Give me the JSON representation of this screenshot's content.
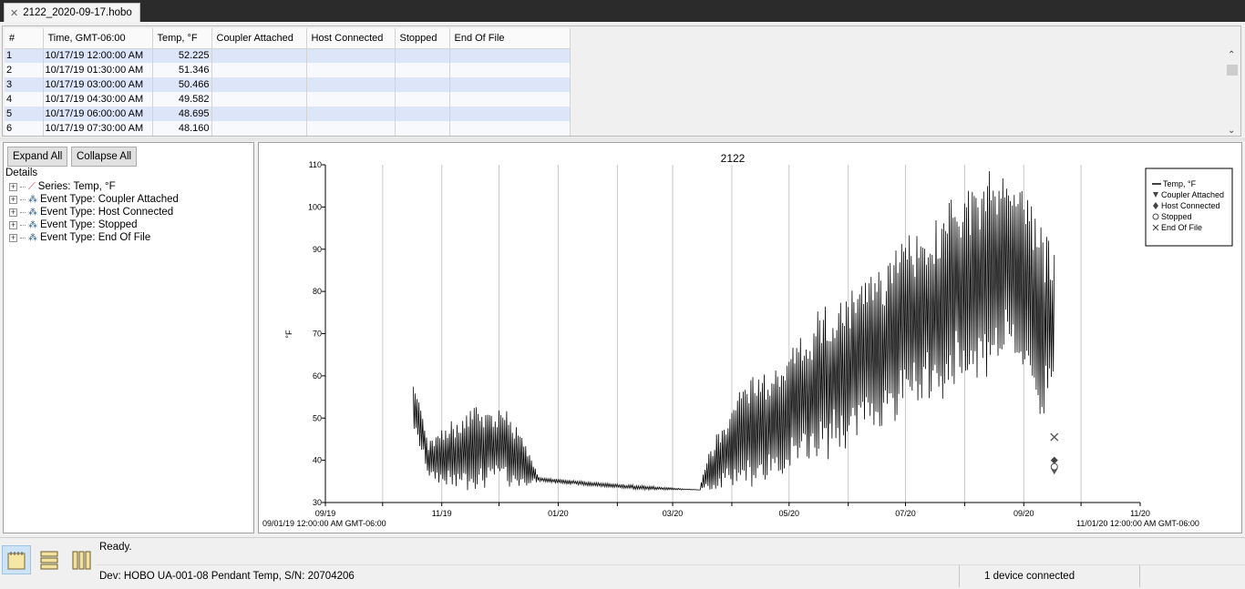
{
  "window": {
    "tab_title": "2122_2020-09-17.hobo"
  },
  "table": {
    "columns": [
      "#",
      "Time, GMT-06:00",
      "Temp, °F",
      "Coupler Attached",
      "Host Connected",
      "Stopped",
      "End Of File"
    ],
    "rows": [
      {
        "n": "1",
        "time": "10/17/19 12:00:00 AM",
        "temp": "52.225"
      },
      {
        "n": "2",
        "time": "10/17/19 01:30:00 AM",
        "temp": "51.346"
      },
      {
        "n": "3",
        "time": "10/17/19 03:00:00 AM",
        "temp": "50.466"
      },
      {
        "n": "4",
        "time": "10/17/19 04:30:00 AM",
        "temp": "49.582"
      },
      {
        "n": "5",
        "time": "10/17/19 06:00:00 AM",
        "temp": "48.695"
      },
      {
        "n": "6",
        "time": "10/17/19 07:30:00 AM",
        "temp": "48.160"
      }
    ]
  },
  "details": {
    "expand_all": "Expand All",
    "collapse_all": "Collapse All",
    "label": "Details",
    "items": [
      "Series: Temp, °F",
      "Event Type: Coupler Attached",
      "Event Type: Host Connected",
      "Event Type: Stopped",
      "Event Type: End Of File"
    ]
  },
  "chart_data": {
    "type": "line",
    "title": "2122",
    "ylabel": "°F",
    "xlabel": "",
    "ylim": [
      30,
      110
    ],
    "yticks": [
      30,
      40,
      50,
      60,
      70,
      80,
      90,
      100,
      110
    ],
    "x_tick_labels": [
      "09/19",
      "11/19",
      "01/20",
      "03/20",
      "05/20",
      "07/20",
      "09/20",
      "11/20"
    ],
    "x_range_start_label": "09/01/19 12:00:00 AM GMT-06:00",
    "x_range_end_label": "11/01/20 12:00:00 AM GMT-06:00",
    "grid": "vertical",
    "legend_position": "top-right",
    "series": [
      {
        "name": "Temp, °F",
        "color": "#000000",
        "envelope": [
          {
            "x": "2019-10-17",
            "min": 48,
            "max": 59
          },
          {
            "x": "2019-10-25",
            "min": 36,
            "max": 45
          },
          {
            "x": "2019-11-05",
            "min": 33,
            "max": 49
          },
          {
            "x": "2019-11-20",
            "min": 34,
            "max": 53
          },
          {
            "x": "2019-12-05",
            "min": 34,
            "max": 52
          },
          {
            "x": "2019-12-15",
            "min": 34,
            "max": 44
          },
          {
            "x": "2019-12-22",
            "min": 35,
            "max": 36
          },
          {
            "x": "2020-01-15",
            "min": 34,
            "max": 35
          },
          {
            "x": "2020-02-15",
            "min": 33,
            "max": 34
          },
          {
            "x": "2020-03-15",
            "min": 33,
            "max": 33
          },
          {
            "x": "2020-03-20",
            "min": 33,
            "max": 42
          },
          {
            "x": "2020-04-05",
            "min": 34,
            "max": 57
          },
          {
            "x": "2020-04-25",
            "min": 36,
            "max": 63
          },
          {
            "x": "2020-05-15",
            "min": 40,
            "max": 74
          },
          {
            "x": "2020-06-05",
            "min": 45,
            "max": 80
          },
          {
            "x": "2020-06-25",
            "min": 50,
            "max": 89
          },
          {
            "x": "2020-07-15",
            "min": 55,
            "max": 97
          },
          {
            "x": "2020-08-05",
            "min": 60,
            "max": 106
          },
          {
            "x": "2020-08-25",
            "min": 64,
            "max": 107
          },
          {
            "x": "2020-09-05",
            "min": 58,
            "max": 103
          },
          {
            "x": "2020-09-10",
            "min": 47,
            "max": 96
          },
          {
            "x": "2020-09-17",
            "min": 58,
            "max": 89
          }
        ]
      }
    ],
    "events": [
      {
        "name": "Coupler Attached",
        "symbol": "triangle-down",
        "x": "2020-09-17",
        "y": 37.5
      },
      {
        "name": "Host Connected",
        "symbol": "diamond",
        "x": "2020-09-17",
        "y": 40
      },
      {
        "name": "Stopped",
        "symbol": "circle",
        "x": "2020-09-17",
        "y": 38.5
      },
      {
        "name": "End Of File",
        "symbol": "x",
        "x": "2020-09-17",
        "y": 45.5
      }
    ],
    "legend": [
      "Temp, °F",
      "Coupler Attached",
      "Host Connected",
      "Stopped",
      "End Of File"
    ]
  },
  "status": {
    "message": "Ready.",
    "device": "Dev: HOBO UA-001-08 Pendant Temp, S/N: 20704206",
    "connection": "1 device connected"
  }
}
